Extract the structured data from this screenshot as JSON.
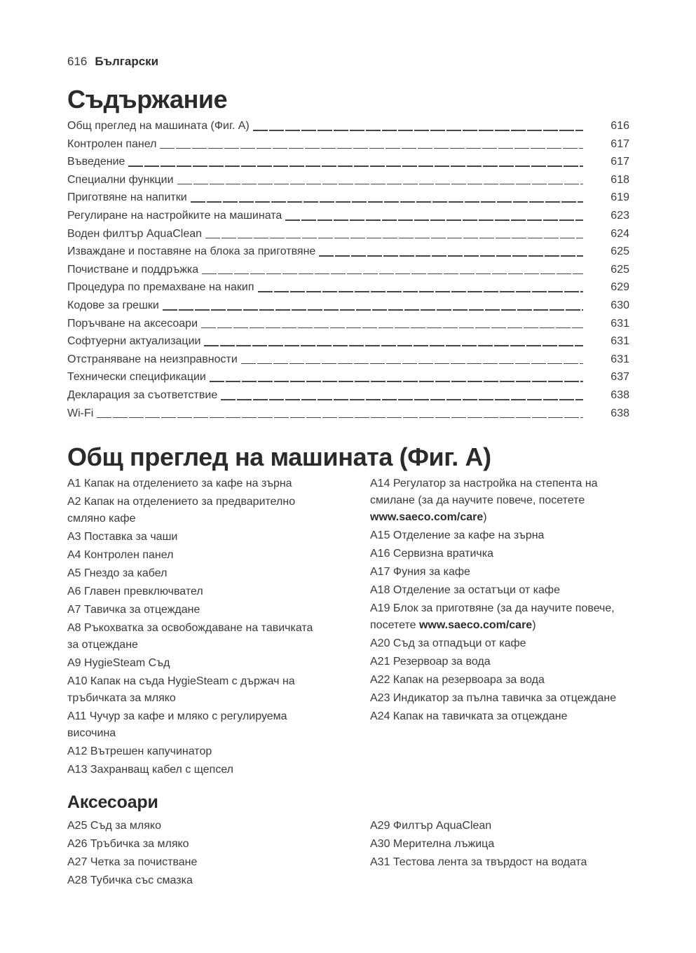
{
  "colors": {
    "text": "#3a3a39",
    "heading": "#2b2b2a",
    "leader_line": "#454544",
    "background": "#ffffff"
  },
  "header": {
    "page_number": "616",
    "language": "Български"
  },
  "toc": {
    "title": "Съдържание",
    "entries": [
      {
        "label": "Общ преглед на машината (Фиг. A)",
        "page": "616"
      },
      {
        "label": "Контролен панел",
        "page": "617"
      },
      {
        "label": "Въведение",
        "page": "617"
      },
      {
        "label": "Специални функции",
        "page": "618"
      },
      {
        "label": "Приготвяне на напитки",
        "page": "619"
      },
      {
        "label": "Регулиране на настройките на машината",
        "page": "623"
      },
      {
        "label": "Воден филтър AquaClean",
        "page": "624"
      },
      {
        "label": "Изваждане и поставяне на блока за приготвяне",
        "page": "625"
      },
      {
        "label": "Почистване и поддръжка",
        "page": "625"
      },
      {
        "label": "Процедура по премахване на накип",
        "page": "629"
      },
      {
        "label": "Кодове за грешки",
        "page": "630"
      },
      {
        "label": "Поръчване на аксесоари",
        "page": "631"
      },
      {
        "label": "Софтуерни актуализации",
        "page": "631"
      },
      {
        "label": "Отстраняване на неизправности",
        "page": "631"
      },
      {
        "label": "Технически спецификации",
        "page": "637"
      },
      {
        "label": "Декларация за съответствие",
        "page": "638"
      },
      {
        "label": "Wi-Fi",
        "page": "638"
      }
    ]
  },
  "overview": {
    "title": "Общ преглед на машината (Фиг. A)",
    "left_column": [
      {
        "lines": [
          [
            {
              "t": "A1 Капак на отделението за кафе на зърна"
            }
          ]
        ]
      },
      {
        "lines": [
          [
            {
              "t": "A2 Капак на отделението за предварително"
            }
          ],
          [
            {
              "t": "смляно кафе"
            }
          ]
        ]
      },
      {
        "lines": [
          [
            {
              "t": "A3 Поставка за чаши"
            }
          ]
        ]
      },
      {
        "lines": [
          [
            {
              "t": "A4 Контролен панел"
            }
          ]
        ]
      },
      {
        "lines": [
          [
            {
              "t": "A5 Гнездо за кабел"
            }
          ]
        ]
      },
      {
        "lines": [
          [
            {
              "t": "A6 Главен превключвател"
            }
          ]
        ]
      },
      {
        "lines": [
          [
            {
              "t": "A7 Тавичка за отцеждане"
            }
          ]
        ]
      },
      {
        "lines": [
          [
            {
              "t": "A8 Ръкохватка за освобождаване на тавичката"
            }
          ],
          [
            {
              "t": "за отцеждане"
            }
          ]
        ]
      },
      {
        "lines": [
          [
            {
              "t": "A9 HygieSteam Съд"
            }
          ]
        ]
      },
      {
        "lines": [
          [
            {
              "t": "A10 Капак на съда HygieSteam с държач на"
            }
          ],
          [
            {
              "t": "тръбичката за мляко"
            }
          ]
        ]
      },
      {
        "lines": [
          [
            {
              "t": "A11 Чучур за кафе и мляко с регулируема"
            }
          ],
          [
            {
              "t": "височина"
            }
          ]
        ]
      },
      {
        "lines": [
          [
            {
              "t": "A12 Вътрешен капучинатор"
            }
          ]
        ]
      },
      {
        "lines": [
          [
            {
              "t": "A13 Захранващ кабел с щепсел"
            }
          ]
        ]
      }
    ],
    "right_column": [
      {
        "lines": [
          [
            {
              "t": "A14 Регулатор за настройка на степента на"
            }
          ],
          [
            {
              "t": "смилане (за да научите повече, посетете"
            }
          ],
          [
            {
              "t": "www.saeco.com/care",
              "b": true
            },
            {
              "t": ")"
            }
          ]
        ]
      },
      {
        "lines": [
          [
            {
              "t": "A15 Отделение за кафе на зърна"
            }
          ]
        ]
      },
      {
        "lines": [
          [
            {
              "t": "A16 Сервизна вратичка"
            }
          ]
        ]
      },
      {
        "lines": [
          [
            {
              "t": "A17 Фуния за кафе"
            }
          ]
        ]
      },
      {
        "lines": [
          [
            {
              "t": "A18 Отделение за остатъци от кафе"
            }
          ]
        ]
      },
      {
        "lines": [
          [
            {
              "t": "A19 Блок за приготвяне (за да научите повече,"
            }
          ],
          [
            {
              "t": "посетете "
            },
            {
              "t": "www.saeco.com/care",
              "b": true
            },
            {
              "t": ")"
            }
          ]
        ]
      },
      {
        "lines": [
          [
            {
              "t": "A20 Съд за отпадъци от кафе"
            }
          ]
        ]
      },
      {
        "lines": [
          [
            {
              "t": "A21 Резервоар за вода"
            }
          ]
        ]
      },
      {
        "lines": [
          [
            {
              "t": "A22 Капак на резервоара за вода"
            }
          ]
        ]
      },
      {
        "lines": [
          [
            {
              "t": "A23 Индикатор за пълна тавичка за отцеждане"
            }
          ]
        ]
      },
      {
        "lines": [
          [
            {
              "t": "A24 Капак на тавичката за отцеждане"
            }
          ]
        ]
      }
    ]
  },
  "accessories": {
    "title": "Аксесоари",
    "left_column": [
      {
        "lines": [
          [
            {
              "t": "A25 Съд за мляко"
            }
          ]
        ]
      },
      {
        "lines": [
          [
            {
              "t": "A26 Тръбичка за мляко"
            }
          ]
        ]
      },
      {
        "lines": [
          [
            {
              "t": "A27 Четка за почистване"
            }
          ]
        ]
      },
      {
        "lines": [
          [
            {
              "t": "A28 Тубичка със смазка"
            }
          ]
        ]
      }
    ],
    "right_column": [
      {
        "lines": [
          [
            {
              "t": "A29 Филтър AquaClean"
            }
          ]
        ]
      },
      {
        "lines": [
          [
            {
              "t": "A30 Мерителна лъжица"
            }
          ]
        ]
      },
      {
        "lines": [
          [
            {
              "t": "A31 Тестова лента за твърдост на водата"
            }
          ]
        ]
      }
    ]
  }
}
